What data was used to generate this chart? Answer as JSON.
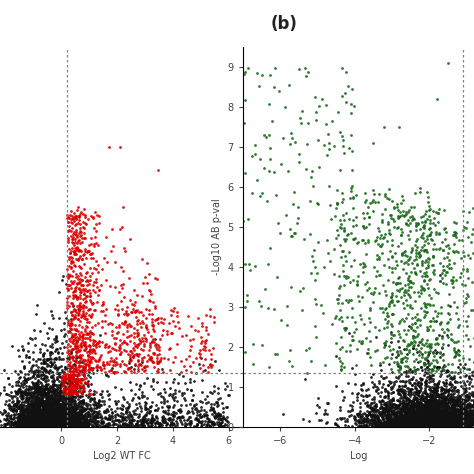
{
  "title_b": "(b)",
  "left_xlabel": "Log2 WT FC",
  "right_xlabel": "Log",
  "right_ylabel": "-Log10 AB p-val",
  "left_xlim": [
    -2.2,
    6.5
  ],
  "left_ylim": [
    0,
    9.5
  ],
  "right_xlim": [
    -7.0,
    -0.8
  ],
  "right_ylim": [
    0,
    9.5
  ],
  "left_vline": 0.2,
  "left_hline": 1.35,
  "right_vline": -1.1,
  "right_hline": 1.35,
  "left_xticks": [
    0,
    2,
    4,
    6
  ],
  "right_xticks": [
    -6,
    -4,
    -2
  ],
  "right_yticks": [
    0,
    1,
    2,
    3,
    4,
    5,
    6,
    7,
    8,
    9
  ],
  "dot_size": 4,
  "black_color": "#111111",
  "red_color": "#dd0000",
  "green_color": "#1a6b1a",
  "background_color": "#ffffff",
  "seed": 42
}
